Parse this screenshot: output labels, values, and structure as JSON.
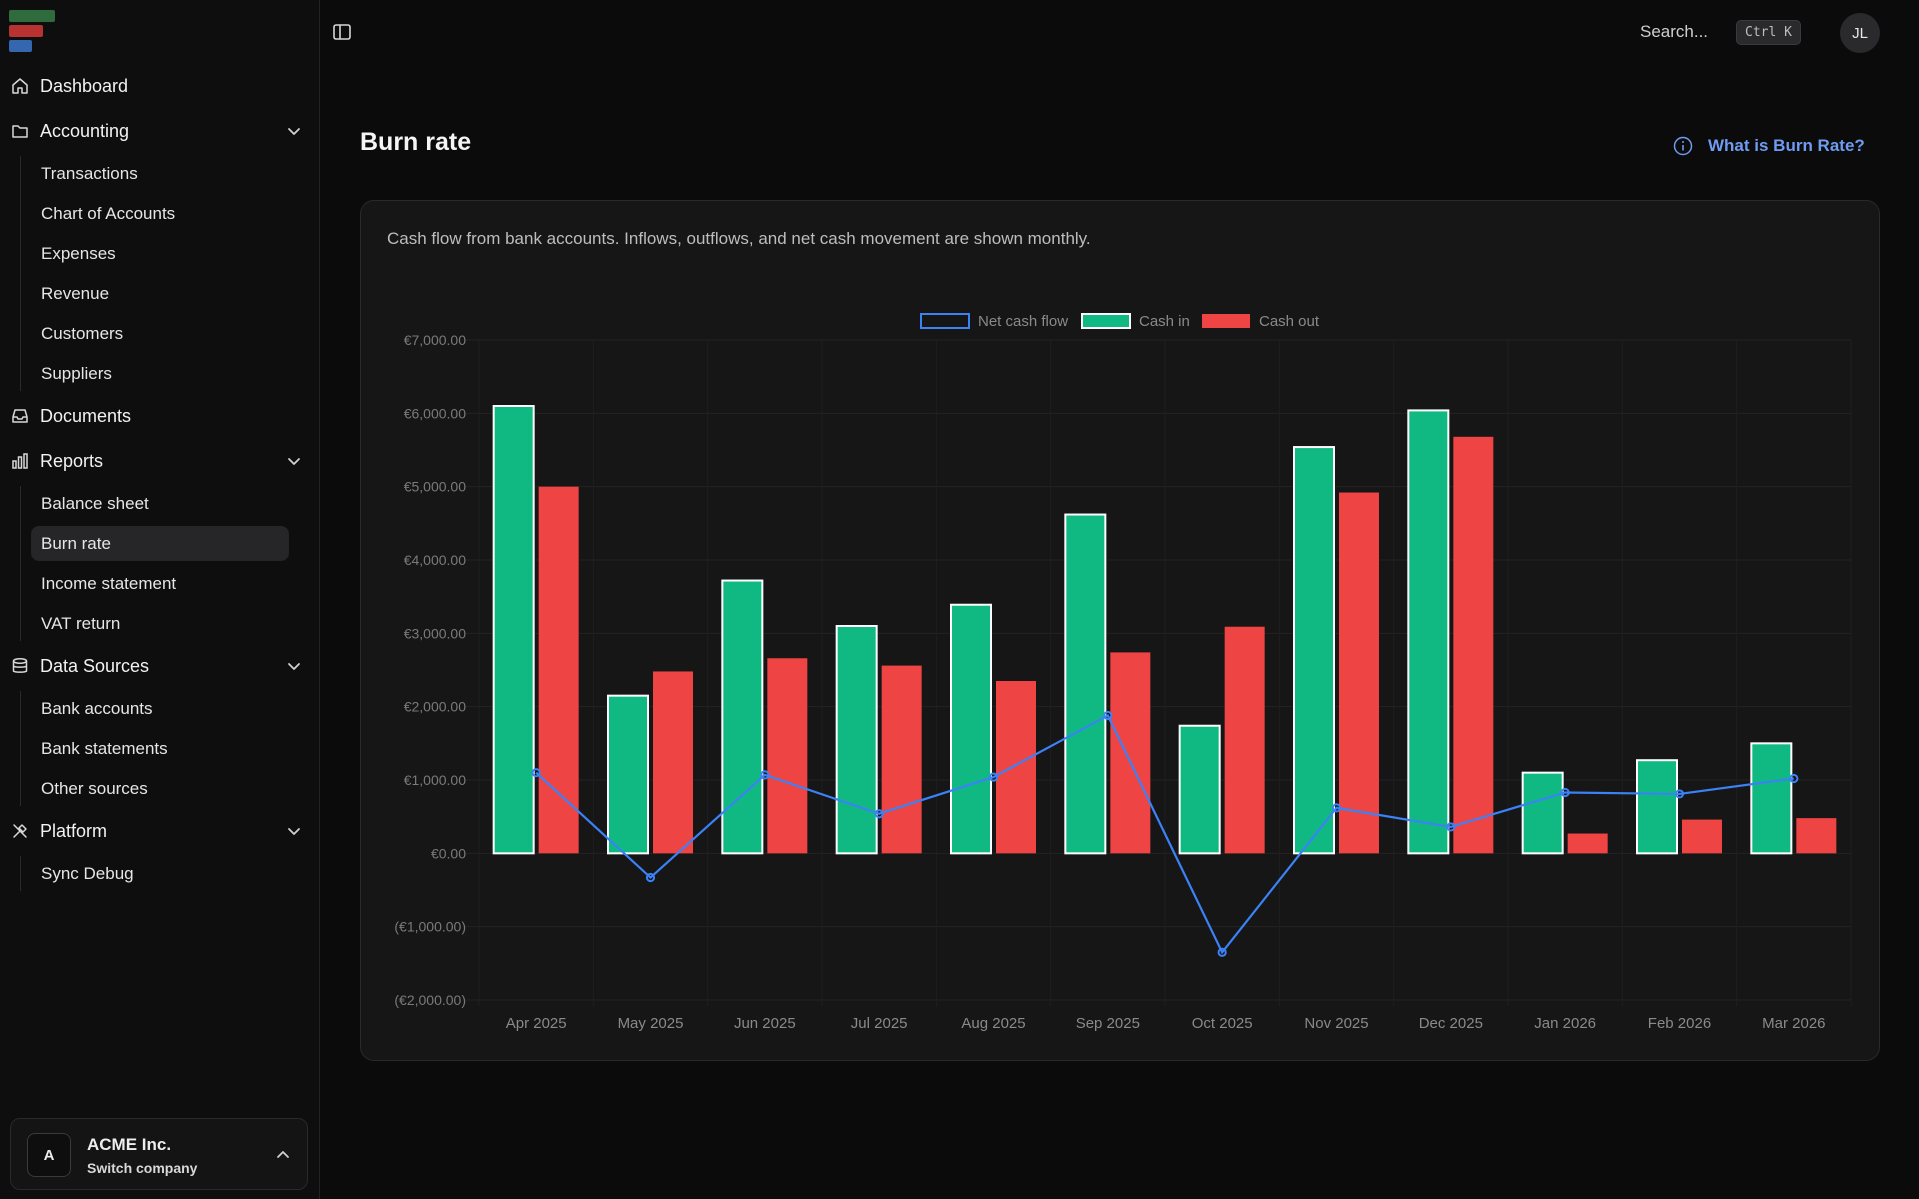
{
  "sidebar": {
    "sections": [
      {
        "label": "Dashboard",
        "icon": "home-icon",
        "expandable": false,
        "items": []
      },
      {
        "label": "Accounting",
        "icon": "folder-icon",
        "expandable": true,
        "items": [
          "Transactions",
          "Chart of Accounts",
          "Expenses",
          "Revenue",
          "Customers",
          "Suppliers"
        ]
      },
      {
        "label": "Documents",
        "icon": "inbox-icon",
        "expandable": false,
        "items": []
      },
      {
        "label": "Reports",
        "icon": "bar-chart-icon",
        "expandable": true,
        "items": [
          "Balance sheet",
          "Burn rate",
          "Income statement",
          "VAT return"
        ]
      },
      {
        "label": "Data Sources",
        "icon": "database-icon",
        "expandable": true,
        "items": [
          "Bank accounts",
          "Bank statements",
          "Other sources"
        ]
      },
      {
        "label": "Platform",
        "icon": "tools-icon",
        "expandable": true,
        "items": [
          "Sync Debug"
        ]
      }
    ],
    "active_item": "Burn rate",
    "company": {
      "initial": "A",
      "name": "ACME Inc.",
      "subtitle": "Switch company"
    }
  },
  "topbar": {
    "search_placeholder": "Search...",
    "shortcut": "Ctrl K",
    "avatar_initials": "JL"
  },
  "page": {
    "title": "Burn rate",
    "help_link": "What is Burn Rate?",
    "description": "Cash flow from bank accounts. Inflows, outflows, and net cash movement are shown monthly."
  },
  "colors": {
    "cash_in": "#10b981",
    "cash_out": "#ef4444",
    "net": "#3b82f6",
    "link": "#6f9bf0"
  },
  "chart_data": {
    "type": "bar",
    "categories": [
      "Apr 2025",
      "May 2025",
      "Jun 2025",
      "Jul 2025",
      "Aug 2025",
      "Sep 2025",
      "Oct 2025",
      "Nov 2025",
      "Dec 2025",
      "Jan 2026",
      "Feb 2026",
      "Mar 2026"
    ],
    "series": [
      {
        "name": "Net cash flow",
        "type": "line",
        "values": [
          1100,
          -330,
          1070,
          540,
          1040,
          1880,
          -1350,
          620,
          360,
          830,
          810,
          1020
        ]
      },
      {
        "name": "Cash in",
        "type": "bar",
        "values": [
          6100,
          2150,
          3720,
          3100,
          3390,
          4620,
          1740,
          5540,
          6040,
          1100,
          1270,
          1500
        ]
      },
      {
        "name": "Cash out",
        "type": "bar",
        "values": [
          5000,
          2480,
          2660,
          2560,
          2350,
          2740,
          3090,
          4920,
          5680,
          270,
          460,
          480
        ]
      }
    ],
    "yticks": [
      "€7,000.00",
      "€6,000.00",
      "€5,000.00",
      "€4,000.00",
      "€3,000.00",
      "€2,000.00",
      "€1,000.00",
      "€0.00",
      "(€1,000.00)",
      "(€2,000.00)"
    ],
    "ylim": [
      -2000,
      7000
    ],
    "legend": "top-center",
    "grid": true
  }
}
